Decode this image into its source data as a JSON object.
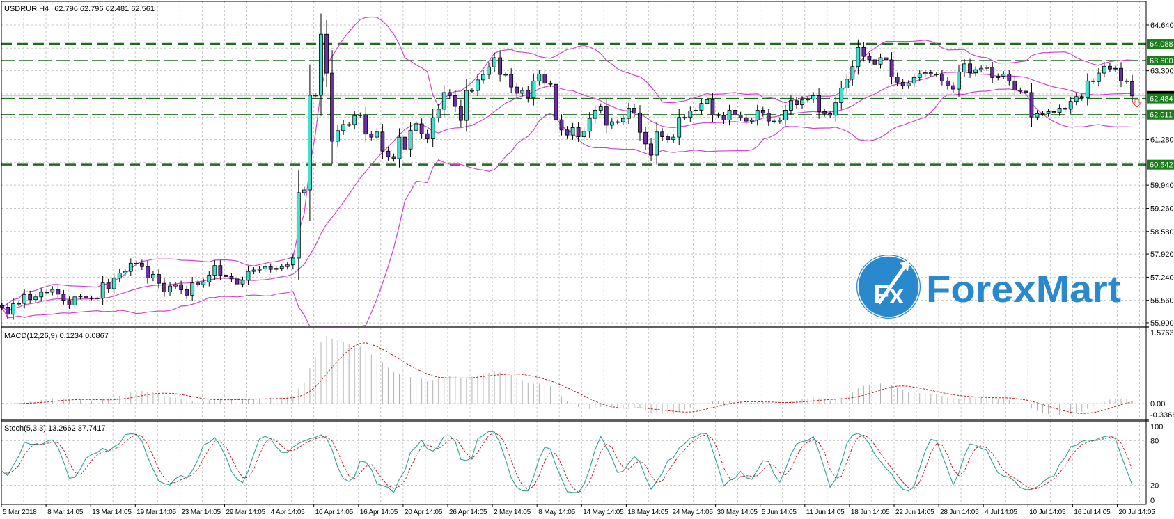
{
  "header": {
    "symbol_label": "USDRUR,H4",
    "ohlc": "62.796 62.796 62.481 62.561"
  },
  "logo": {
    "badge": "Fx",
    "text": "ForexMart"
  },
  "colors": {
    "bull": "#40e0d0",
    "bear": "#6a2fa8",
    "bands": "#cc44cc",
    "level": "#1e6b1e",
    "level_label": "#1a7d1a",
    "macd_hist": "#b0b0b0",
    "signal": "#b22222",
    "stoch_k": "#2aa198",
    "grid": "#c8c8c8",
    "logo": "#2a88cc",
    "arrow": "#e05050"
  },
  "chart_data": {
    "type": "candlestick",
    "title": "USDRUR,H4",
    "timeframe": "H4",
    "note": "open of each bar = previous close",
    "close": [
      56.36,
      56.15,
      56.46,
      56.47,
      56.73,
      56.58,
      56.66,
      56.8,
      56.8,
      56.88,
      56.74,
      56.56,
      56.42,
      56.66,
      56.68,
      56.63,
      56.63,
      56.62,
      57.07,
      56.9,
      57.21,
      57.36,
      57.41,
      57.65,
      57.65,
      57.55,
      57.22,
      57.32,
      57.06,
      56.81,
      56.98,
      57.02,
      56.87,
      56.71,
      57.07,
      57.02,
      57.1,
      57.3,
      57.58,
      57.3,
      57.26,
      57.19,
      57.04,
      57.15,
      57.41,
      57.45,
      57.48,
      57.55,
      57.47,
      57.5,
      57.55,
      57.6,
      57.8,
      59.72,
      59.8,
      62.58,
      62.58,
      64.37,
      63.23,
      61.23,
      61.54,
      61.72,
      61.72,
      61.98,
      62.0,
      61.44,
      61.35,
      61.5,
      60.94,
      60.78,
      60.72,
      61.35,
      61.0,
      61.55,
      61.74,
      61.45,
      61.3,
      61.92,
      62.17,
      62.66,
      62.57,
      62.25,
      61.84,
      62.72,
      62.72,
      63.03,
      63.19,
      63.41,
      63.68,
      63.19,
      63.19,
      62.82,
      62.64,
      62.72,
      62.5,
      63.0,
      63.2,
      62.93,
      62.9,
      61.86,
      61.56,
      61.41,
      61.63,
      61.36,
      61.52,
      61.9,
      62.14,
      62.24,
      61.7,
      61.8,
      61.8,
      61.9,
      62.2,
      62.05,
      61.49,
      61.15,
      60.82,
      61.5,
      61.36,
      61.28,
      61.35,
      61.93,
      61.93,
      62.12,
      62.14,
      62.34,
      62.45,
      62.0,
      61.98,
      61.85,
      62.14,
      62.0,
      61.92,
      61.82,
      61.85,
      62.14,
      62.05,
      61.82,
      61.82,
      61.85,
      62.14,
      62.42,
      62.3,
      62.44,
      62.46,
      62.57,
      62.1,
      62.04,
      61.99,
      62.36,
      62.79,
      63.05,
      63.42,
      63.98,
      63.72,
      63.62,
      63.49,
      63.68,
      63.62,
      63.12,
      62.96,
      62.86,
      62.93,
      63.1,
      63.21,
      63.24,
      63.2,
      63.2,
      63.0,
      62.86,
      62.76,
      63.26,
      63.5,
      63.24,
      63.33,
      63.37,
      63.4,
      63.1,
      63.14,
      63.2,
      63.0,
      62.73,
      62.7,
      62.66,
      61.94,
      62.04,
      62.04,
      62.1,
      62.08,
      62.2,
      62.17,
      62.4,
      62.54,
      62.5,
      63.0,
      62.98,
      63.23,
      63.43,
      63.35,
      63.37,
      63.0,
      62.98,
      62.561
    ],
    "price_axis": {
      "range": [
        55.9,
        64.64
      ],
      "ticks": [
        "64.640",
        "63.300",
        "61.280",
        "59.940",
        "59.260",
        "58.580",
        "57.920",
        "57.240",
        "56.560",
        "55.900"
      ],
      "grid_values": [
        64.64,
        63.96,
        63.3,
        62.62,
        61.94,
        61.28,
        60.6,
        59.94,
        59.26,
        58.58,
        57.92,
        57.24,
        56.56,
        55.9
      ]
    },
    "levels": [
      {
        "value": "64.088",
        "style": "thick"
      },
      {
        "value": "63.600",
        "style": "thin"
      },
      {
        "value": "62.484",
        "style": "thin"
      },
      {
        "value": "62.011",
        "style": "thin"
      },
      {
        "value": "60.542",
        "style": "thick"
      }
    ],
    "current_price": "62.561",
    "x_labels": [
      "5 Mar 2018",
      "8 Mar 14:05",
      "13 Mar 14:05",
      "19 Mar 14:05",
      "23 Mar 14:05",
      "29 Mar 14:05",
      "4 Apr 14:05",
      "10 Apr 14:05",
      "16 Apr 14:05",
      "20 Apr 14:05",
      "26 Apr 14:05",
      "2 May 14:05",
      "8 May 14:05",
      "14 May 14:05",
      "18 May 14:05",
      "24 May 14:05",
      "30 May 14:05",
      "5 Jun 14:05",
      "11 Jun 14:05",
      "18 Jun 14:05",
      "22 Jun 14:05",
      "28 Jun 14:05",
      "4 Jul 14:05",
      "10 Jul 14:05",
      "16 Jul 14:05",
      "20 Jul 14:05"
    ],
    "bollinger": {
      "period": 20,
      "deviation": 2
    },
    "macd": {
      "label": "MACD(12,26,9) 0.1234 0.0867",
      "fast": 12,
      "slow": 26,
      "signal": 9,
      "range": [
        -0.3366,
        1.5763
      ],
      "ticks": [
        "1.5763",
        "0.00",
        "-0.3366"
      ],
      "tick_values": [
        1.5763,
        0,
        -0.3366
      ]
    },
    "stoch": {
      "label": "Stoch(5,3,3) 13.2662 37.7417",
      "k": 5,
      "d": 3,
      "slowing": 3,
      "range": [
        0,
        100
      ],
      "ticks": [
        "100",
        "80",
        "20",
        "0"
      ],
      "tick_values": [
        100,
        80,
        20,
        0
      ]
    }
  }
}
